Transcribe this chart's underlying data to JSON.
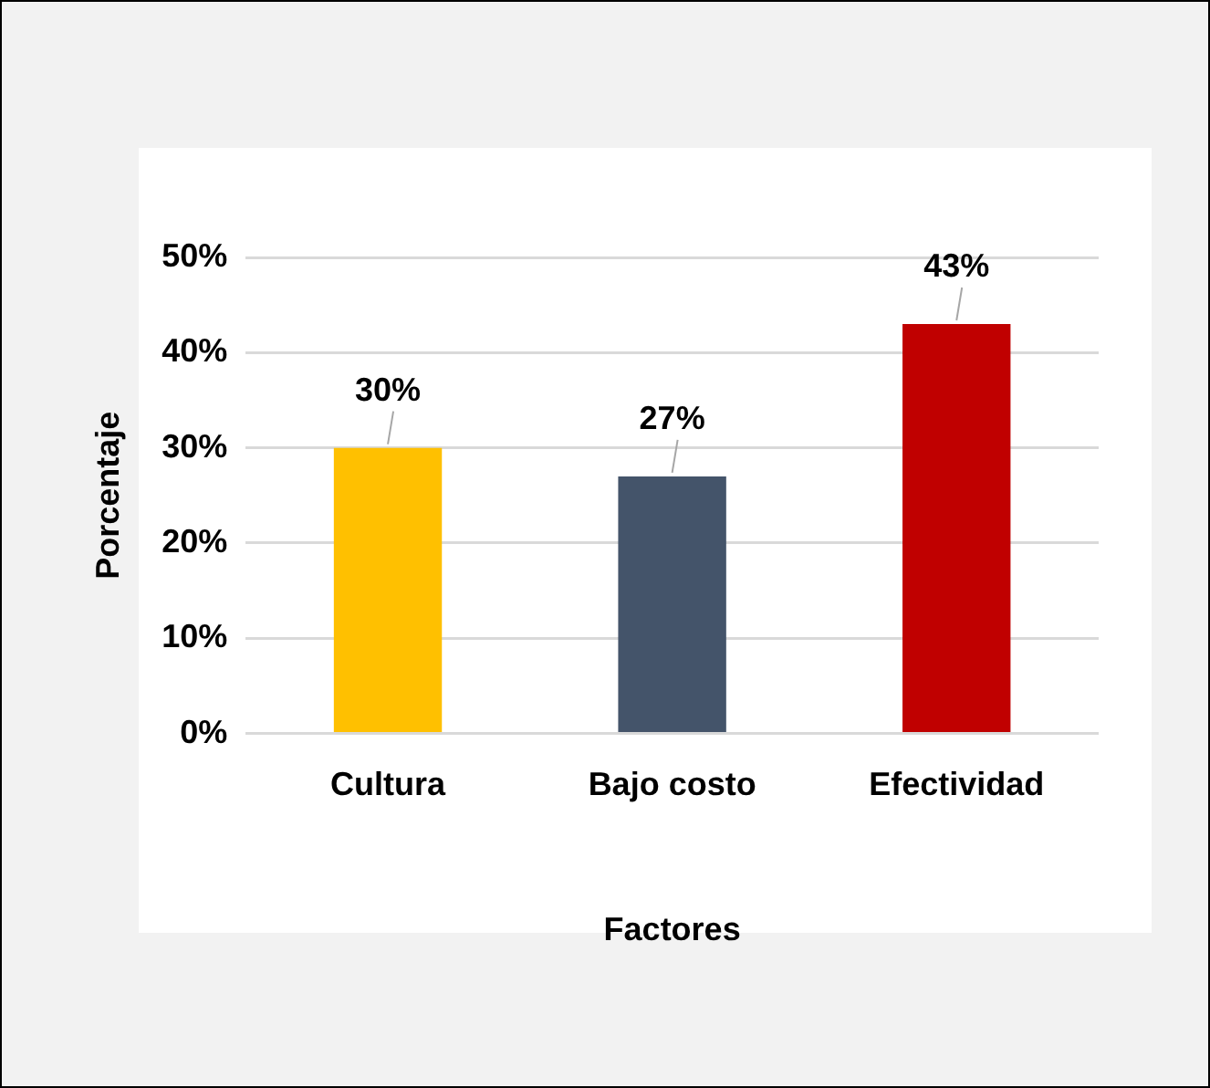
{
  "chart_data": {
    "type": "bar",
    "xlabel": "Factores",
    "ylabel": "Porcentaje",
    "categories": [
      "Cultura",
      "Bajo costo",
      "Efectividad"
    ],
    "values": [
      30,
      27,
      43
    ],
    "colors": [
      "#ffc000",
      "#44546a",
      "#c00000"
    ],
    "value_labels": [
      "30%",
      "27%",
      "43%"
    ],
    "ylim": [
      0,
      50
    ],
    "yticks": [
      {
        "value": 0,
        "label": "0%"
      },
      {
        "value": 10,
        "label": "10%"
      },
      {
        "value": 20,
        "label": "20%"
      },
      {
        "value": 30,
        "label": "30%"
      },
      {
        "value": 40,
        "label": "40%"
      },
      {
        "value": 50,
        "label": "50%"
      }
    ],
    "grid": "y",
    "legend": false
  }
}
